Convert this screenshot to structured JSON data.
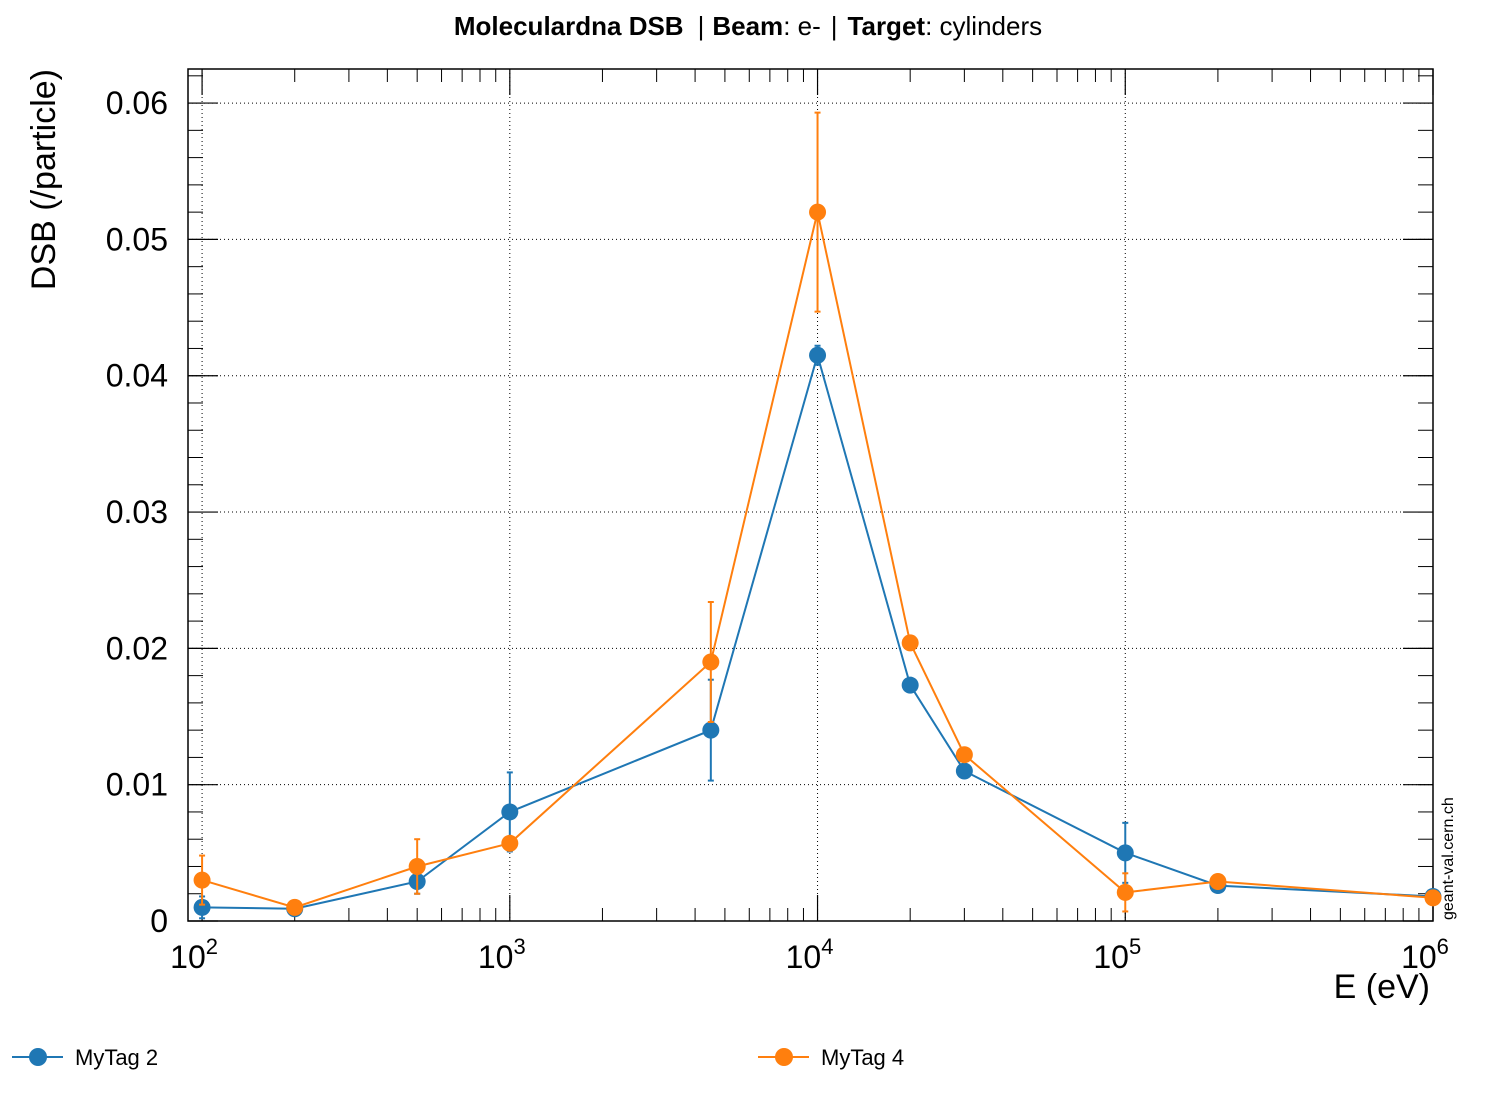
{
  "chart_data": {
    "type": "line",
    "title": {
      "main": "Moleculardna DSB",
      "beam_label": "Beam",
      "beam_value": ": e-",
      "target_label": "Target",
      "target_value": ": cylinders",
      "separator": "|"
    },
    "xlabel": "E (eV)",
    "ylabel": "DSB (/particle)",
    "x_scale": "log",
    "xlim": [
      90,
      1000000
    ],
    "ylim": [
      0,
      0.0625
    ],
    "x_ticks": [
      {
        "value": 100,
        "base": "10",
        "exp": "2"
      },
      {
        "value": 1000,
        "base": "10",
        "exp": "3"
      },
      {
        "value": 10000,
        "base": "10",
        "exp": "4"
      },
      {
        "value": 100000,
        "base": "10",
        "exp": "5"
      },
      {
        "value": 1000000,
        "base": "10",
        "exp": "6"
      }
    ],
    "y_ticks": [
      {
        "value": 0,
        "label": "0"
      },
      {
        "value": 0.01,
        "label": "0.01"
      },
      {
        "value": 0.02,
        "label": "0.02"
      },
      {
        "value": 0.03,
        "label": "0.03"
      },
      {
        "value": 0.04,
        "label": "0.04"
      },
      {
        "value": 0.05,
        "label": "0.05"
      },
      {
        "value": 0.06,
        "label": "0.06"
      }
    ],
    "grid": true,
    "legend_position": "bottom",
    "watermark": "geant-val.cern.ch",
    "series": [
      {
        "name": "MyTag 2",
        "color": "#1f77b4",
        "points": [
          {
            "x": 100,
            "y": 0.001,
            "err": 0.0008
          },
          {
            "x": 200,
            "y": 0.0009,
            "err": 0.0004
          },
          {
            "x": 500,
            "y": 0.0029,
            "err": 0.0009
          },
          {
            "x": 1000,
            "y": 0.008,
            "err": 0.0029
          },
          {
            "x": 4500,
            "y": 0.014,
            "err": 0.0037
          },
          {
            "x": 10000,
            "y": 0.0415,
            "err": 0.0007
          },
          {
            "x": 20000,
            "y": 0.0173,
            "err": 0.0003
          },
          {
            "x": 30000,
            "y": 0.011,
            "err": 0.0002
          },
          {
            "x": 100000,
            "y": 0.005,
            "err": 0.0022
          },
          {
            "x": 200000,
            "y": 0.0026,
            "err": 0.0002
          },
          {
            "x": 1000000,
            "y": 0.0018,
            "err": 0.0001
          }
        ]
      },
      {
        "name": "MyTag 4",
        "color": "#ff7f0e",
        "points": [
          {
            "x": 100,
            "y": 0.003,
            "err": 0.0018
          },
          {
            "x": 200,
            "y": 0.001,
            "err": 0.0003
          },
          {
            "x": 500,
            "y": 0.004,
            "err": 0.002
          },
          {
            "x": 1000,
            "y": 0.0057,
            "err": 0.0002
          },
          {
            "x": 4500,
            "y": 0.019,
            "err": 0.0044
          },
          {
            "x": 10000,
            "y": 0.052,
            "err": 0.0073
          },
          {
            "x": 20000,
            "y": 0.0204,
            "err": 0.0003
          },
          {
            "x": 30000,
            "y": 0.0122,
            "err": 0.0003
          },
          {
            "x": 100000,
            "y": 0.0021,
            "err": 0.0014
          },
          {
            "x": 200000,
            "y": 0.0029,
            "err": 0.0002
          },
          {
            "x": 1000000,
            "y": 0.0017,
            "err": 0.0001
          }
        ]
      }
    ]
  }
}
